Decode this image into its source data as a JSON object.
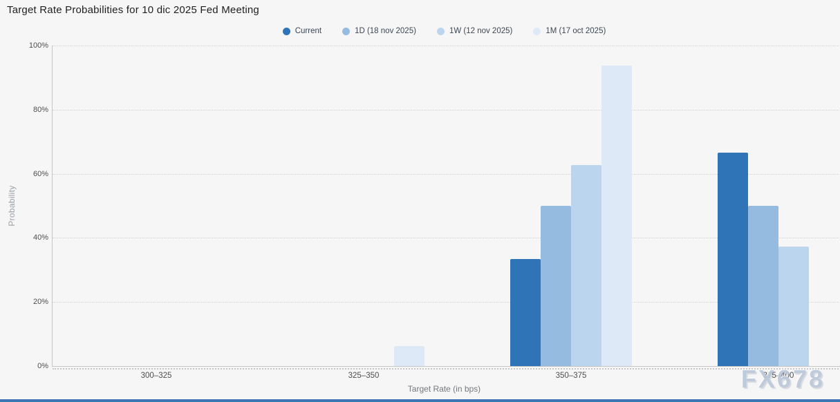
{
  "title": "Target Rate Probabilities for 10 dic 2025 Fed Meeting",
  "watermark": "FX678",
  "colors": {
    "background": "#f6f6f7",
    "accent_bar": "#3e75b5",
    "gridline": "#d2d2d2",
    "axis": "#c6c6c6"
  },
  "chart_data": {
    "type": "bar",
    "title": "Target Rate Probabilities for 10 dic 2025 Fed Meeting",
    "categories": [
      "300–325",
      "325–350",
      "350–375",
      "375–400"
    ],
    "series": [
      {
        "name": "Current",
        "color": "#2e74b6",
        "values": [
          0,
          0,
          33.4,
          66.6
        ]
      },
      {
        "name": "1D (18 nov 2025)",
        "color": "#95bbe0",
        "values": [
          0,
          0,
          50.1,
          49.9
        ]
      },
      {
        "name": "1W (12 nov 2025)",
        "color": "#bcd5ee",
        "values": [
          0,
          0,
          62.8,
          37.2
        ]
      },
      {
        "name": "1M (17 oct 2025)",
        "color": "#dde9f6",
        "values": [
          0,
          6.3,
          93.7,
          0
        ]
      }
    ],
    "xlabel": "Target Rate (in bps)",
    "ylabel": "Probability",
    "ylim": [
      0,
      100
    ],
    "yticks": [
      "0%",
      "20%",
      "40%",
      "60%",
      "80%",
      "100%"
    ],
    "ytick_values": [
      0,
      20,
      40,
      60,
      80,
      100
    ],
    "legend_position": "top",
    "grid": "dotted-horizontal"
  }
}
